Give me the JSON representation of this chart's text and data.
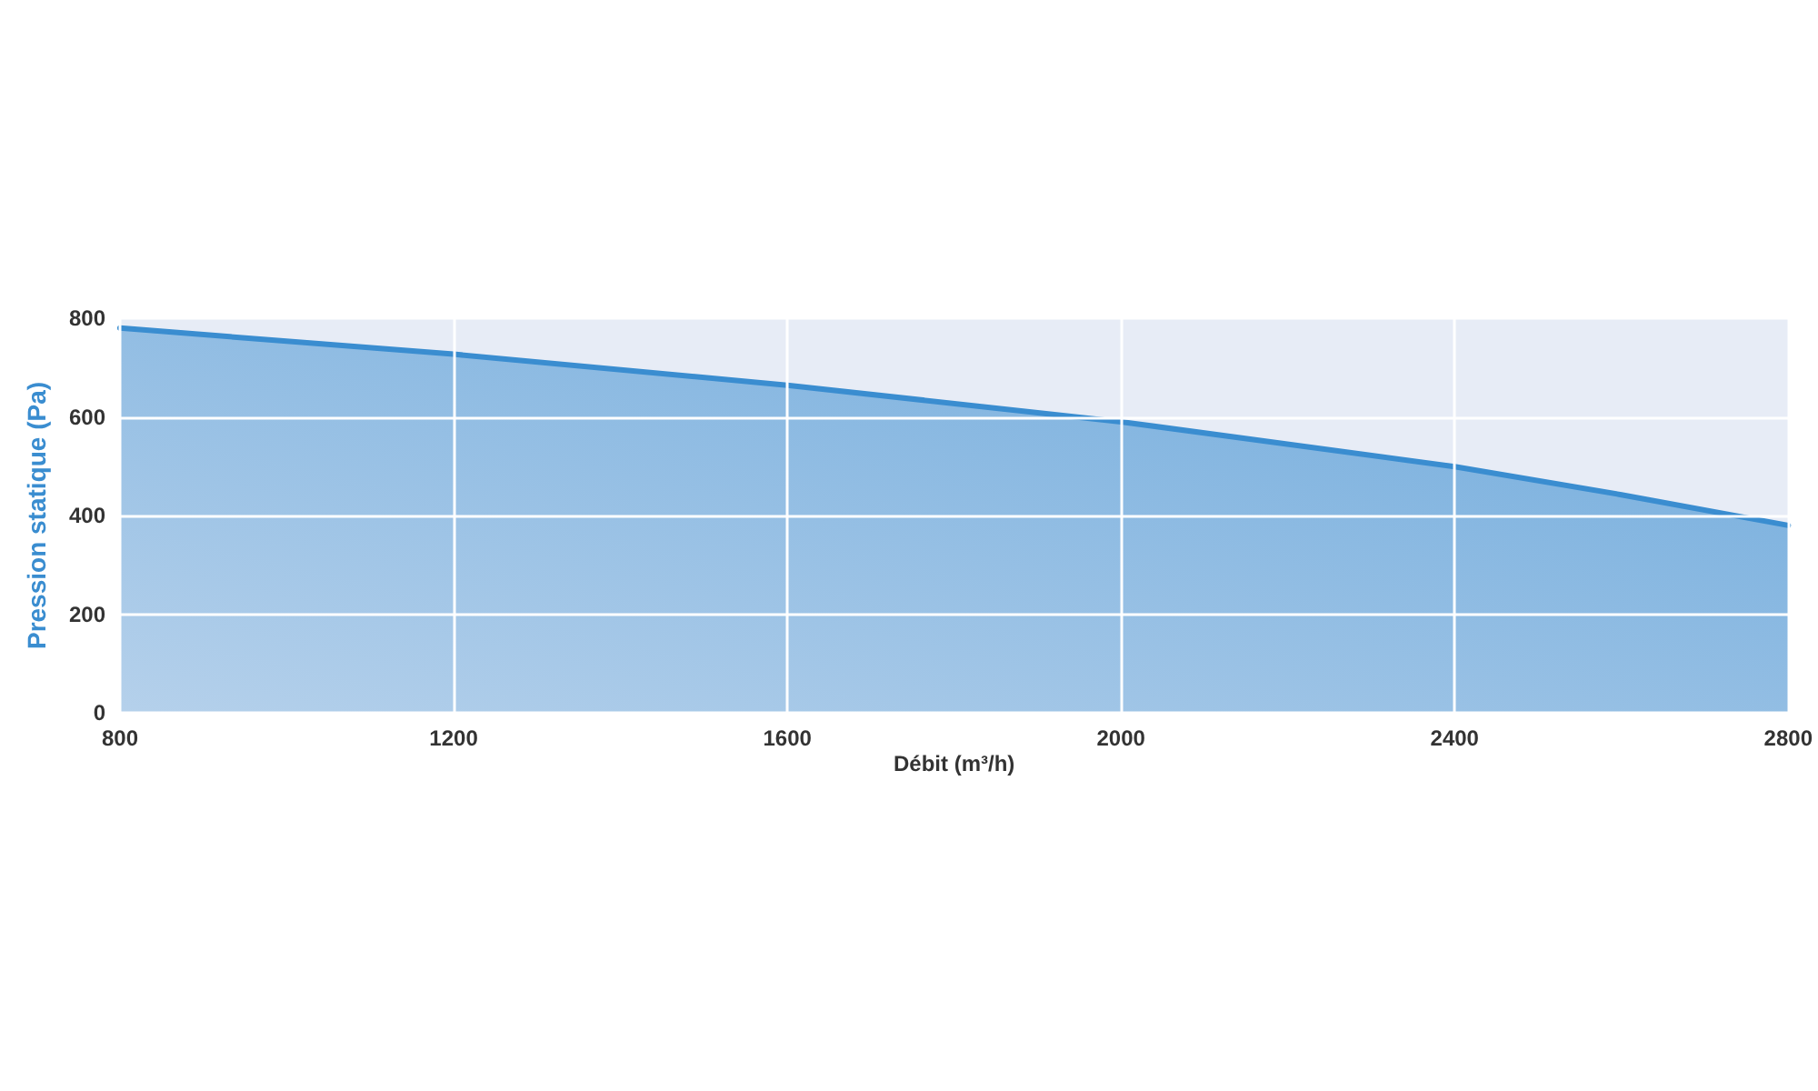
{
  "chart_data": {
    "type": "area",
    "xlabel": "Débit (m³/h)",
    "ylabel": "Pression statique (Pa)",
    "x": [
      800,
      1200,
      1600,
      2000,
      2400,
      2600,
      2800
    ],
    "series": [
      {
        "color": "#3a8dd0",
        "values": [
          780,
          727,
          664,
          590,
          499,
          442,
          380
        ]
      }
    ],
    "xlim": [
      800,
      2800
    ],
    "xticks": [
      800,
      1200,
      1600,
      2000,
      2400,
      2800
    ],
    "ylim": [
      0,
      800
    ],
    "yticks": [
      0,
      200,
      400,
      600,
      800
    ],
    "grid": true,
    "marker": "none",
    "line_style": "solid"
  }
}
